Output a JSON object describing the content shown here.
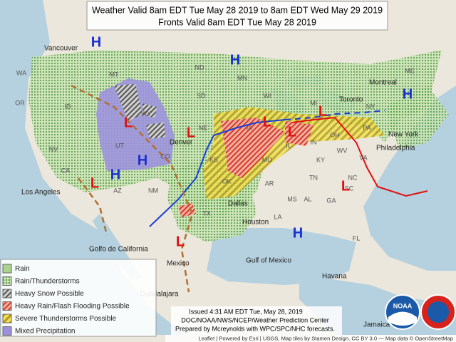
{
  "header": {
    "lines": [
      "Weather Valid 8am EDT Tue May 28 2019 to 8am EDT Wed May 29 2019",
      "Fronts Valid 8am EDT Tue May 28 2019"
    ]
  },
  "legend": {
    "items": [
      "Rain",
      "Rain/Thunderstorms",
      "Heavy Snow Possible",
      "Heavy Rain/Flash Flooding Possible",
      "Severe Thunderstorms Possible",
      "Mixed Precipitation"
    ]
  },
  "issued": {
    "lines": [
      "Issued 4:31 AM EDT Tue, May 28, 2019",
      "DOC/NOAA/NWS/NCEP/Weather Prediction Center",
      "Prepared by Mcreynolds with WPC/SPC/NHC forecasts."
    ]
  },
  "attribution": "Leaflet | Powered by Esri | USGS, Map tiles by Stamen Design, CC BY 3.0 — Map data © OpenStreetMap",
  "logo": "NOAA",
  "places": [
    "Vancouver",
    "Los Angeles",
    "Denver",
    "Dallas",
    "Houston",
    "New York",
    "Philadelphia",
    "Toronto",
    "Montreal",
    "Mexico",
    "Guadalajara",
    "Havana",
    "Jamaica",
    "Gulf of Mexico",
    "Golfo de California"
  ],
  "states": [
    "WA",
    "OR",
    "ID",
    "MT",
    "WY",
    "NV",
    "UT",
    "CO",
    "AZ",
    "NM",
    "ND",
    "SD",
    "NE",
    "KS",
    "OK",
    "TX",
    "MN",
    "IA",
    "MO",
    "AR",
    "LA",
    "MS",
    "AL",
    "GA",
    "FL",
    "SC",
    "NC",
    "TN",
    "KY",
    "WV",
    "VA",
    "OH",
    "IN",
    "IL",
    "MI",
    "WI",
    "PA",
    "NY",
    "ME",
    "CA"
  ],
  "highs": [
    "H",
    "H",
    "H",
    "H",
    "H",
    "H"
  ],
  "lows": [
    "L",
    "L",
    "L",
    "L",
    "L",
    "L",
    "L",
    "L"
  ]
}
